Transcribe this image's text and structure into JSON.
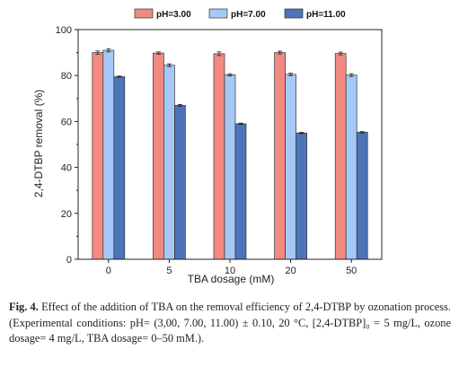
{
  "chart_data": {
    "type": "bar",
    "title": "",
    "xlabel": "TBA dosage (mM)",
    "ylabel": "2,4-DTBP removal (%)",
    "ylim": [
      0,
      100
    ],
    "yticks": [
      0,
      20,
      40,
      60,
      80,
      100
    ],
    "categories": [
      "0",
      "5",
      "10",
      "20",
      "50"
    ],
    "legend_position": "top",
    "series": [
      {
        "name": "pH=3.00",
        "color": "#f28a82",
        "values": [
          90,
          89.8,
          89.5,
          90,
          89.6
        ],
        "errors": [
          0.7,
          0.5,
          0.8,
          0.6,
          0.6
        ]
      },
      {
        "name": "pH=7.00",
        "color": "#a6c8f5",
        "values": [
          91,
          84.5,
          80.3,
          80.5,
          80.2
        ],
        "errors": [
          0.7,
          0.6,
          0.5,
          0.5,
          0.6
        ]
      },
      {
        "name": "pH=11.00",
        "color": "#4d73b8",
        "values": [
          79.5,
          67,
          59,
          55,
          55.3
        ],
        "errors": [
          0.3,
          0.4,
          0.3,
          0.3,
          0.3
        ]
      }
    ]
  },
  "caption": {
    "label": "Fig. 4.",
    "text": "Effect of the addition of TBA on the removal efficiency of 2,4-DTBP by ozonation process. (Experimental conditions: pH= (3,00, 7.00, 11.00) ± 0.10, 20 °C, [2,4-DTBP]₀ = 5 mg/L, ozone dosage= 4 mg/L, TBA dosage= 0–50 mM.)."
  }
}
